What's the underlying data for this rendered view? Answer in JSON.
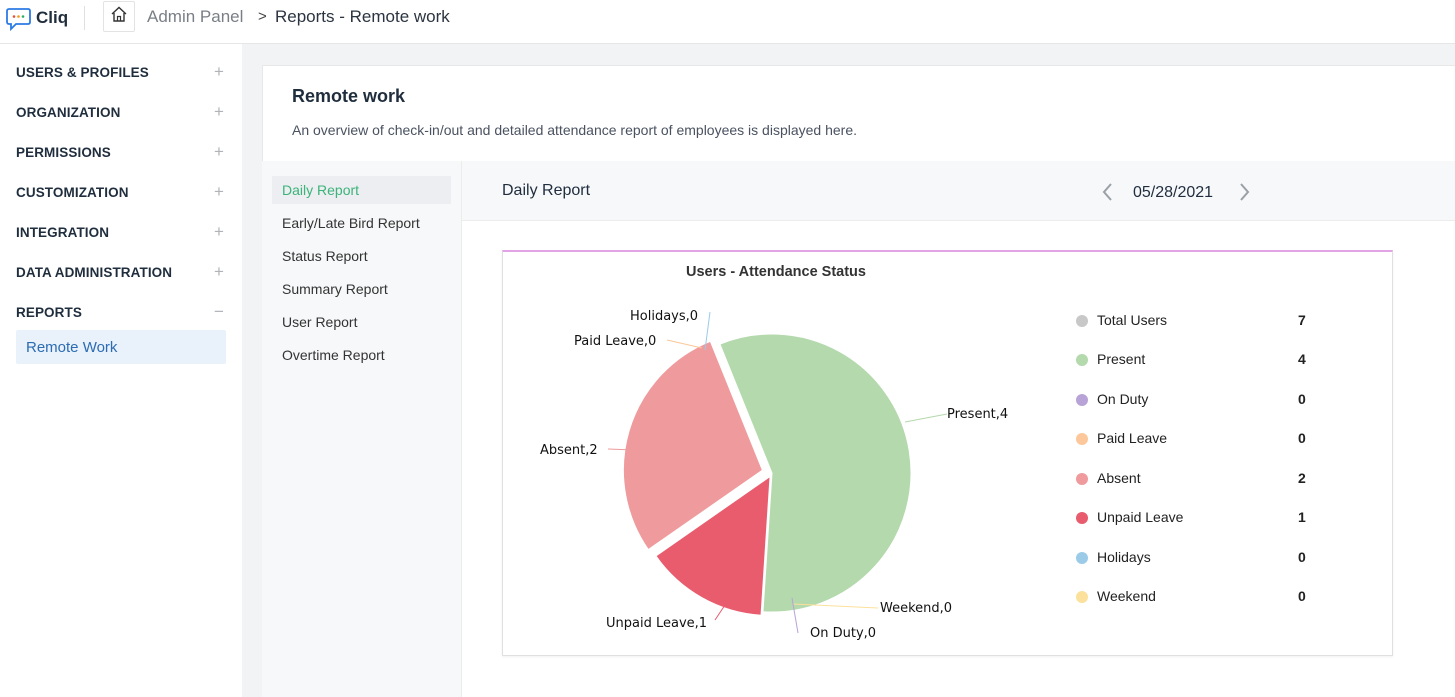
{
  "app": {
    "name": "Cliq"
  },
  "breadcrumb": {
    "admin": "Admin Panel",
    "separator": ">",
    "current": "Reports - Remote work"
  },
  "sidebar": {
    "items": [
      {
        "label": "USERS & PROFILES",
        "toggle": "+"
      },
      {
        "label": "ORGANIZATION",
        "toggle": "+"
      },
      {
        "label": "PERMISSIONS",
        "toggle": "+"
      },
      {
        "label": "CUSTOMIZATION",
        "toggle": "+"
      },
      {
        "label": "INTEGRATION",
        "toggle": "+"
      },
      {
        "label": "DATA ADMINISTRATION",
        "toggle": "+"
      },
      {
        "label": "REPORTS",
        "toggle": "−"
      }
    ],
    "sub_item": "Remote Work"
  },
  "page": {
    "title": "Remote work",
    "description": "An overview of check-in/out and detailed attendance report of employees is displayed here."
  },
  "subnav": {
    "items": [
      "Daily Report",
      "Early/Late Bird Report",
      "Status Report",
      "Summary Report",
      "User Report",
      "Overtime Report"
    ],
    "active_index": 0
  },
  "report": {
    "title": "Daily Report",
    "date": "05/28/2021"
  },
  "colors": {
    "accent_green": "#3bb37a",
    "present": "#b3d9ac",
    "absent": "#ef9a9c",
    "unpaid_leave": "#e85c6e",
    "total_users": "#c8c8c8",
    "on_duty": "#b8a3d6",
    "paid_leave": "#fcc79a",
    "holidays": "#9ccbe8",
    "weekend": "#fbe19b"
  },
  "chart_data": {
    "type": "pie",
    "title": "Users - Attendance Status",
    "slices": [
      {
        "label": "Present",
        "value": 4,
        "color": "#b3d9ac"
      },
      {
        "label": "Weekend",
        "value": 0,
        "color": "#fbe19b"
      },
      {
        "label": "On Duty",
        "value": 0,
        "color": "#b8a3d6"
      },
      {
        "label": "Unpaid Leave",
        "value": 1,
        "color": "#e85c6e"
      },
      {
        "label": "Absent",
        "value": 2,
        "color": "#ef9a9c"
      },
      {
        "label": "Paid Leave",
        "value": 0,
        "color": "#fcc79a"
      },
      {
        "label": "Holidays",
        "value": 0,
        "color": "#9ccbe8"
      }
    ],
    "data_labels": [
      "Present,4",
      "Weekend,0",
      "On Duty,0",
      "Unpaid Leave,1",
      "Absent,2",
      "Paid Leave,0",
      "Holidays,0"
    ],
    "legend": [
      {
        "label": "Total Users",
        "value": "7",
        "color": "#c8c8c8"
      },
      {
        "label": "Present",
        "value": "4",
        "color": "#b3d9ac"
      },
      {
        "label": "On Duty",
        "value": "0",
        "color": "#b8a3d6"
      },
      {
        "label": "Paid Leave",
        "value": "0",
        "color": "#fcc79a"
      },
      {
        "label": "Absent",
        "value": "2",
        "color": "#ef9a9c"
      },
      {
        "label": "Unpaid Leave",
        "value": "1",
        "color": "#e85c6e"
      },
      {
        "label": "Holidays",
        "value": "0",
        "color": "#9ccbe8"
      },
      {
        "label": "Weekend",
        "value": "0",
        "color": "#fbe19b"
      }
    ],
    "legend_position": "right"
  }
}
